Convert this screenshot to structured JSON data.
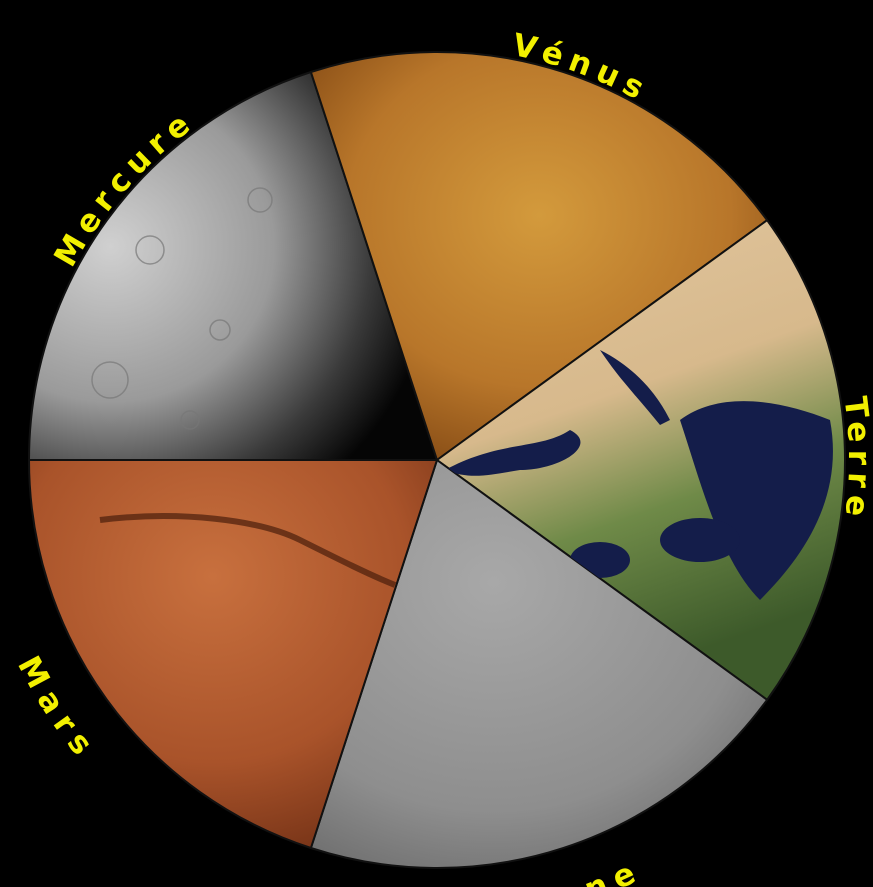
{
  "planets": [
    "Mercure",
    "Vénus",
    "Terre",
    "Lune",
    "Mars"
  ]
}
